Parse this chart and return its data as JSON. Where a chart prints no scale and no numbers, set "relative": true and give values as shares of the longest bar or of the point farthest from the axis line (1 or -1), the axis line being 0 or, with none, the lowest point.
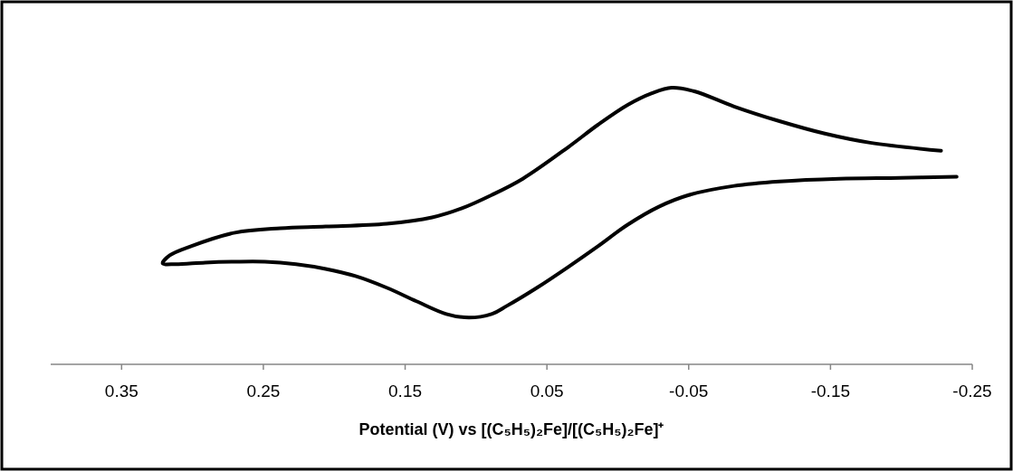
{
  "chart_data": {
    "type": "line",
    "relative": true,
    "xlabel": "Potential (V) vs [(C₅H₅)₂Fe]/[(C₅H₅)₂Fe]⁺",
    "xlim": [
      0.4,
      -0.25
    ],
    "xticks": [
      0.35,
      0.25,
      0.15,
      0.05,
      -0.05,
      -0.15,
      -0.25
    ],
    "marker": "none",
    "line_style": "solid",
    "series": [
      {
        "color": "#000000",
        "x": [
          -0.239,
          -0.199,
          -0.156,
          -0.114,
          -0.082,
          -0.05,
          -0.029,
          -0.007,
          0.014,
          0.035,
          0.057,
          0.078,
          0.089,
          0.105,
          0.121,
          0.142,
          0.163,
          0.185,
          0.206,
          0.227,
          0.249,
          0.27,
          0.291,
          0.312,
          0.321,
          0.316,
          0.301,
          0.27,
          0.238,
          0.206,
          0.163,
          0.131,
          0.11,
          0.089,
          0.067,
          0.035,
          0.014,
          -0.007,
          -0.024,
          -0.038,
          -0.054,
          -0.082,
          -0.114,
          -0.146,
          -0.178,
          -0.228
        ],
        "values": [
          0.678,
          0.674,
          0.671,
          0.661,
          0.645,
          0.612,
          0.57,
          0.505,
          0.427,
          0.352,
          0.277,
          0.212,
          0.182,
          0.169,
          0.182,
          0.228,
          0.277,
          0.319,
          0.345,
          0.362,
          0.371,
          0.371,
          0.368,
          0.362,
          0.365,
          0.394,
          0.427,
          0.476,
          0.492,
          0.498,
          0.508,
          0.531,
          0.564,
          0.612,
          0.671,
          0.785,
          0.866,
          0.938,
          0.98,
          1,
          0.987,
          0.932,
          0.879,
          0.834,
          0.801,
          0.772
        ]
      }
    ]
  }
}
